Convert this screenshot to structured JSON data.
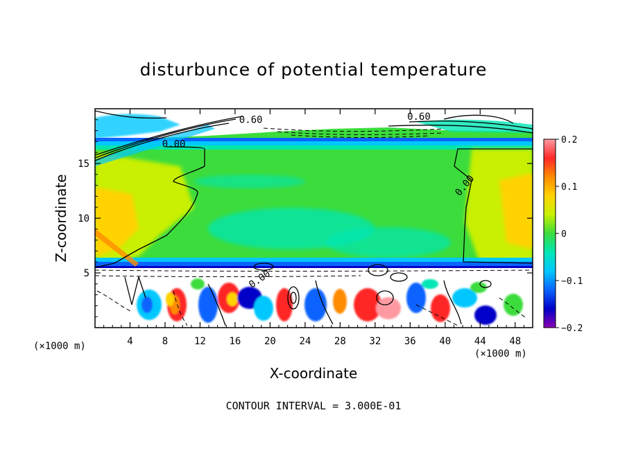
{
  "chart_data": {
    "type": "heatmap",
    "title": "disturbunce of potential temperature",
    "xlabel": "X-coordinate",
    "ylabel": "Z-coordinate",
    "x_unit_label_left": "(×1000 m)",
    "x_unit_label_right": "(×1000 m)",
    "xlim": [
      0,
      50
    ],
    "ylim": [
      0,
      20
    ],
    "x_ticks": [
      4,
      8,
      12,
      16,
      20,
      24,
      28,
      32,
      36,
      40,
      44,
      48
    ],
    "y_ticks": [
      5,
      10,
      15
    ],
    "colorbar": {
      "range": [
        -0.2,
        0.2
      ],
      "tick_values": [
        0.2,
        0.1,
        0,
        -0.1,
        -0.2
      ],
      "tick_labels": [
        "0.2",
        "0.1",
        "0",
        "−0.1",
        "−0.2"
      ],
      "colors": [
        "#ff9aa2",
        "#ff2828",
        "#ff8c00",
        "#ffd200",
        "#c8f000",
        "#3cdc3c",
        "#00e6b4",
        "#00c8ff",
        "#0a64ff",
        "#0000c8",
        "#8c00b4"
      ]
    },
    "contour_labels": [
      "0.60",
      "0.60",
      "0.00",
      "0.00",
      "0.00"
    ],
    "contour_interval_note": "CONTOUR INTERVAL = 3.000E-01"
  }
}
